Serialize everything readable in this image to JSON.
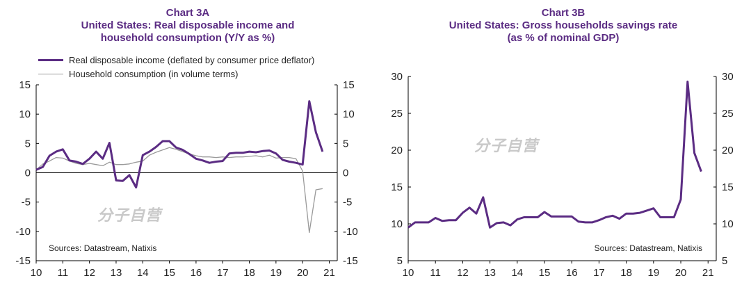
{
  "watermark": "分子自营",
  "chart_data": [
    {
      "type": "line",
      "title_line1": "Chart 3A",
      "title_line2": "United States: Real disposable income and",
      "title_line3": "household consumption (Y/Y as %)",
      "source": "Sources:  Datastream,  Natixis",
      "xlim": [
        10,
        21.3
      ],
      "ylim": [
        -15,
        15
      ],
      "x_ticks": [
        "10",
        "11",
        "12",
        "13",
        "14",
        "15",
        "16",
        "17",
        "18",
        "19",
        "20",
        "21"
      ],
      "y_ticks_left": [
        "15",
        "10",
        "5",
        "0",
        "-5",
        "-10",
        "-15"
      ],
      "y_ticks_right": [
        "15",
        "10",
        "5",
        "0",
        "-5",
        "-10",
        "-15"
      ],
      "y_tick_values": [
        15,
        10,
        5,
        0,
        -5,
        -10,
        -15
      ],
      "legend_position": "top-left",
      "series": [
        {
          "name": "Real disposable income (deflated by consumer price deflator)",
          "color": "#5b2c83",
          "points": [
            [
              10.0,
              0.5
            ],
            [
              10.25,
              1.0
            ],
            [
              10.5,
              2.9
            ],
            [
              10.75,
              3.6
            ],
            [
              11.0,
              4.0
            ],
            [
              11.25,
              2.1
            ],
            [
              11.5,
              1.9
            ],
            [
              11.75,
              1.5
            ],
            [
              12.0,
              2.4
            ],
            [
              12.25,
              3.6
            ],
            [
              12.5,
              2.4
            ],
            [
              12.75,
              5.1
            ],
            [
              13.0,
              -1.3
            ],
            [
              13.25,
              -1.4
            ],
            [
              13.5,
              -0.4
            ],
            [
              13.75,
              -2.5
            ],
            [
              14.0,
              3.0
            ],
            [
              14.25,
              3.6
            ],
            [
              14.5,
              4.4
            ],
            [
              14.75,
              5.4
            ],
            [
              15.0,
              5.4
            ],
            [
              15.25,
              4.3
            ],
            [
              15.5,
              3.9
            ],
            [
              15.75,
              3.2
            ],
            [
              16.0,
              2.4
            ],
            [
              16.25,
              2.1
            ],
            [
              16.5,
              1.7
            ],
            [
              16.75,
              1.9
            ],
            [
              17.0,
              2.0
            ],
            [
              17.25,
              3.3
            ],
            [
              17.5,
              3.4
            ],
            [
              17.75,
              3.4
            ],
            [
              18.0,
              3.6
            ],
            [
              18.25,
              3.5
            ],
            [
              18.5,
              3.7
            ],
            [
              18.75,
              3.8
            ],
            [
              19.0,
              3.3
            ],
            [
              19.25,
              2.2
            ],
            [
              19.5,
              1.9
            ],
            [
              19.75,
              1.7
            ],
            [
              20.0,
              1.4
            ],
            [
              20.25,
              12.2
            ],
            [
              20.5,
              6.9
            ],
            [
              20.75,
              3.6
            ]
          ]
        },
        {
          "name": "Household consumption (in volume terms)",
          "color": "#9a9a9a",
          "points": [
            [
              10.0,
              0.5
            ],
            [
              10.25,
              1.5
            ],
            [
              10.5,
              2.0
            ],
            [
              10.75,
              2.6
            ],
            [
              11.0,
              2.5
            ],
            [
              11.25,
              2.0
            ],
            [
              11.5,
              1.6
            ],
            [
              11.75,
              1.4
            ],
            [
              12.0,
              1.6
            ],
            [
              12.25,
              1.4
            ],
            [
              12.5,
              1.2
            ],
            [
              12.75,
              1.8
            ],
            [
              13.0,
              1.4
            ],
            [
              13.25,
              1.4
            ],
            [
              13.5,
              1.5
            ],
            [
              13.75,
              1.8
            ],
            [
              14.0,
              2.0
            ],
            [
              14.25,
              3.0
            ],
            [
              14.5,
              3.5
            ],
            [
              14.75,
              3.9
            ],
            [
              15.0,
              4.3
            ],
            [
              15.25,
              4.0
            ],
            [
              15.5,
              3.6
            ],
            [
              15.75,
              3.2
            ],
            [
              16.0,
              2.9
            ],
            [
              16.25,
              2.7
            ],
            [
              16.5,
              2.7
            ],
            [
              16.75,
              2.6
            ],
            [
              17.0,
              2.7
            ],
            [
              17.25,
              2.6
            ],
            [
              17.5,
              2.7
            ],
            [
              17.75,
              2.7
            ],
            [
              18.0,
              2.8
            ],
            [
              18.25,
              2.9
            ],
            [
              18.5,
              2.7
            ],
            [
              18.75,
              3.0
            ],
            [
              19.0,
              2.5
            ],
            [
              19.25,
              2.6
            ],
            [
              19.5,
              2.6
            ],
            [
              19.75,
              2.4
            ],
            [
              20.0,
              0.3
            ],
            [
              20.25,
              -10.2
            ],
            [
              20.5,
              -2.9
            ],
            [
              20.75,
              -2.7
            ]
          ]
        }
      ]
    },
    {
      "type": "line",
      "title_line1": "Chart 3B",
      "title_line2": "United States: Gross households savings rate",
      "title_line3": "(as % of nominal GDP)",
      "source": "Sources:  Datastream,  Natixis",
      "xlim": [
        10,
        21.3
      ],
      "ylim": [
        5,
        30
      ],
      "x_ticks": [
        "10",
        "11",
        "12",
        "13",
        "14",
        "15",
        "16",
        "17",
        "18",
        "19",
        "20",
        "21"
      ],
      "y_ticks_left": [
        "30",
        "25",
        "20",
        "15",
        "10",
        "5"
      ],
      "y_ticks_right": [
        "30",
        "25",
        "20",
        "15",
        "10",
        "5"
      ],
      "y_tick_values": [
        30,
        25,
        20,
        15,
        10,
        5
      ],
      "series": [
        {
          "color": "#5b2c83",
          "points": [
            [
              10.0,
              9.5
            ],
            [
              10.25,
              10.2
            ],
            [
              10.5,
              10.2
            ],
            [
              10.75,
              10.2
            ],
            [
              11.0,
              10.8
            ],
            [
              11.25,
              10.4
            ],
            [
              11.5,
              10.5
            ],
            [
              11.75,
              10.5
            ],
            [
              12.0,
              11.5
            ],
            [
              12.25,
              12.2
            ],
            [
              12.5,
              11.4
            ],
            [
              12.75,
              13.6
            ],
            [
              13.0,
              9.5
            ],
            [
              13.25,
              10.1
            ],
            [
              13.5,
              10.2
            ],
            [
              13.75,
              9.8
            ],
            [
              14.0,
              10.6
            ],
            [
              14.25,
              10.9
            ],
            [
              14.5,
              10.9
            ],
            [
              14.75,
              10.9
            ],
            [
              15.0,
              11.6
            ],
            [
              15.25,
              11.0
            ],
            [
              15.5,
              11.0
            ],
            [
              15.75,
              11.0
            ],
            [
              16.0,
              11.0
            ],
            [
              16.25,
              10.3
            ],
            [
              16.5,
              10.2
            ],
            [
              16.75,
              10.2
            ],
            [
              17.0,
              10.5
            ],
            [
              17.25,
              10.9
            ],
            [
              17.5,
              11.1
            ],
            [
              17.75,
              10.7
            ],
            [
              18.0,
              11.4
            ],
            [
              18.25,
              11.4
            ],
            [
              18.5,
              11.5
            ],
            [
              18.75,
              11.8
            ],
            [
              19.0,
              12.1
            ],
            [
              19.25,
              10.9
            ],
            [
              19.5,
              10.9
            ],
            [
              19.75,
              10.9
            ],
            [
              20.0,
              13.3
            ],
            [
              20.25,
              29.3
            ],
            [
              20.5,
              19.6
            ],
            [
              20.75,
              17.1
            ]
          ]
        }
      ]
    }
  ]
}
